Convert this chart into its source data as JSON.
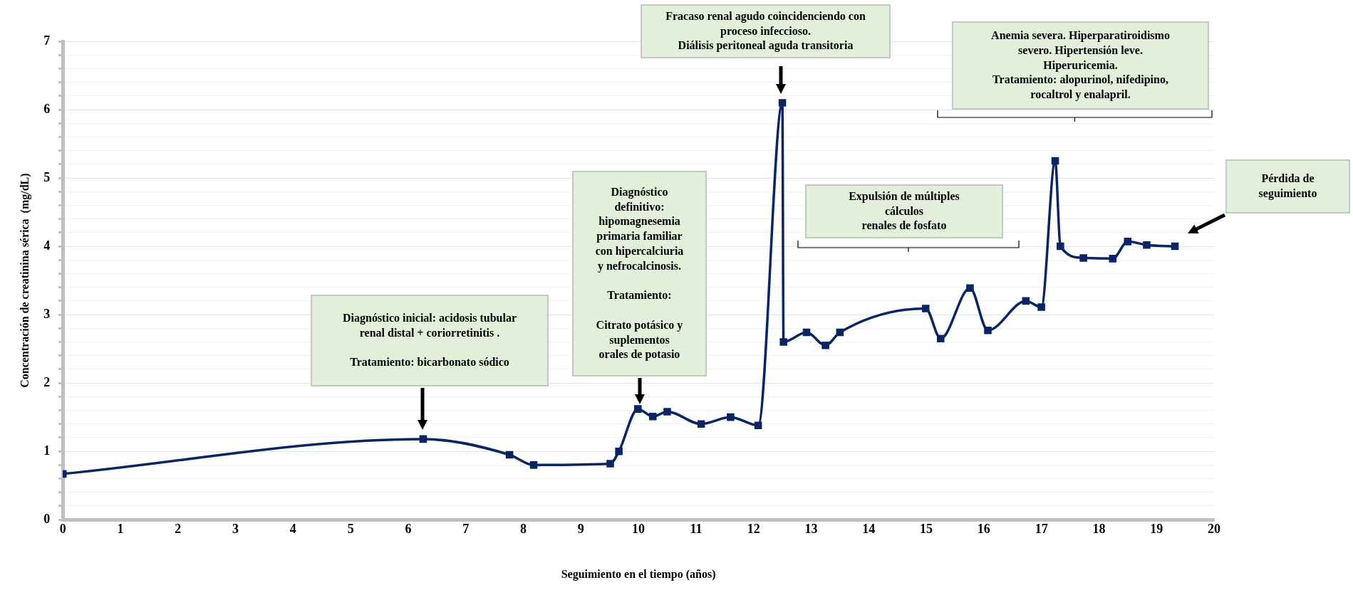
{
  "chart_data": {
    "type": "line",
    "xlabel": "Seguimiento en el tiempo (años)",
    "ylabel": "Concentración de creatinina sérica  (mg/dL)",
    "x": [
      0,
      6.26,
      7.76,
      8.18,
      9.51,
      9.66,
      9.99,
      10.25,
      10.5,
      11.09,
      11.6,
      12.08,
      12.5,
      12.52,
      12.92,
      13.25,
      13.5,
      14.99,
      15.25,
      15.76,
      16.07,
      16.73,
      17.0,
      17.24,
      17.33,
      17.73,
      18.24,
      18.5,
      18.83,
      19.32
    ],
    "series": [
      {
        "color": "#0b2462",
        "values": [
          0.67,
          1.18,
          0.95,
          0.8,
          0.82,
          1.0,
          1.62,
          1.51,
          1.58,
          1.4,
          1.5,
          1.38,
          6.1,
          2.6,
          2.74,
          2.55,
          2.74,
          3.09,
          2.65,
          3.39,
          2.77,
          3.2,
          3.11,
          5.25,
          4.0,
          3.83,
          3.82,
          4.07,
          4.02,
          4.0
        ]
      }
    ],
    "xlim": [
      0,
      20
    ],
    "xticks": [
      0,
      1,
      2,
      3,
      4,
      5,
      6,
      7,
      8,
      9,
      10,
      11,
      12,
      13,
      14,
      15,
      16,
      17,
      18,
      19,
      20
    ],
    "ylim": [
      0,
      7
    ],
    "yticks": [
      0,
      {
        "value": 0.2,
        "label": null
      },
      {
        "value": 0.4,
        "label": null
      },
      {
        "value": 0.6,
        "label": null
      },
      {
        "value": 0.8,
        "label": null
      },
      1,
      {
        "value": 1.2,
        "label": null
      },
      {
        "value": 1.4,
        "label": null
      },
      {
        "value": 1.6,
        "label": null
      },
      {
        "value": 1.8,
        "label": null
      },
      2,
      {
        "value": 2.2,
        "label": null
      },
      {
        "value": 2.4,
        "label": null
      },
      {
        "value": 2.6,
        "label": null
      },
      {
        "value": 2.8,
        "label": null
      },
      3,
      {
        "value": 3.2,
        "label": null
      },
      {
        "value": 3.4,
        "label": null
      },
      {
        "value": 3.6,
        "label": null
      },
      {
        "value": 3.8,
        "label": null
      },
      4,
      {
        "value": 4.2,
        "label": null
      },
      {
        "value": 4.4,
        "label": null
      },
      {
        "value": 4.6,
        "label": null
      },
      {
        "value": 4.8,
        "label": null
      },
      5,
      {
        "value": 5.2,
        "label": null
      },
      {
        "value": 5.4,
        "label": null
      },
      {
        "value": 5.6,
        "label": null
      },
      {
        "value": 5.8,
        "label": null
      },
      6,
      {
        "value": 6.2,
        "label": null
      },
      {
        "value": 6.4,
        "label": null
      },
      {
        "value": 6.6,
        "label": null
      },
      {
        "value": 6.8,
        "label": null
      },
      7
    ],
    "grid": "y",
    "legend": false,
    "marker": "square",
    "line_style": "solid",
    "annotations": [
      "Diagnóstico inicial: acidosis tubular\nrenal distal + coriorretinitis .\n\nTratamiento: bicarbonato sódico",
      "Diagnóstico\ndefinitivo:\nhipomagnesemia\nprimaria familiar\ncon hipercalciuria\ny nefrocalcinosis.\n\nTratamiento:\n\nCitrato potásico y\nsuplementos\norales de potasio",
      "Fracaso renal agudo coincidenciendo con\nproceso infeccioso.\nDiálisis peritoneal aguda transitoria",
      "Expulsión de múltiples\ncálculos\nrenales de fosfato",
      "Anemia severa. Hiperparatiroidismo\nsevero. Hipertensión leve.\nHiperuricemia.\nTratamiento: alopurinol, nifedipino,\nrocaltrol y enalapril.",
      "Pérdida de\nseguimiento"
    ]
  }
}
